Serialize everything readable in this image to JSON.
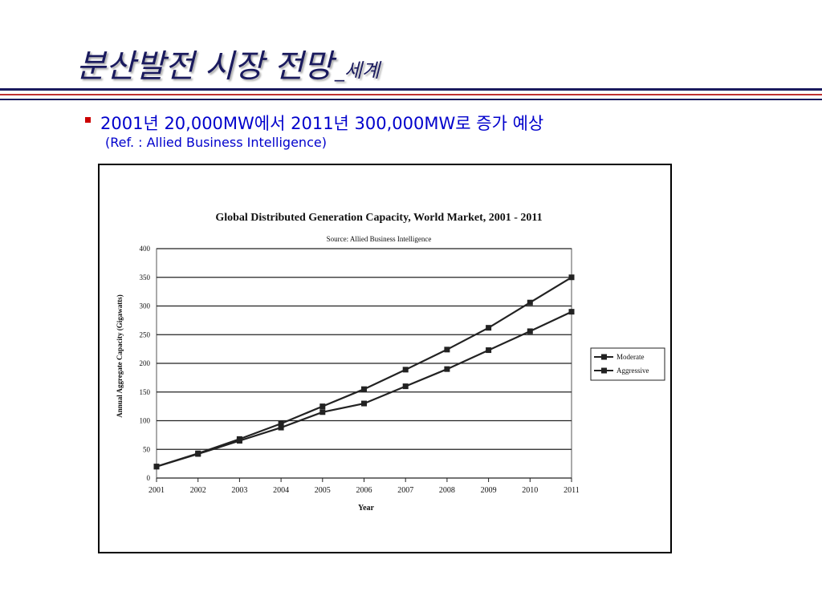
{
  "slide": {
    "title": "분산발전 시장 전망",
    "title_sub": "_세계",
    "bullet": "2001년 20,000MW에서 2011년 300,000MW로 증가 예상",
    "ref": "(Ref. : Allied Business Intelligence)"
  },
  "colors": {
    "title": "#1a1a5e",
    "rule_blue": "#1a1a5e",
    "rule_red": "#c03030",
    "bullet": "#cc0000",
    "body_text": "#0000cc"
  },
  "chart_data": {
    "type": "line",
    "title": "Global Distributed Generation Capacity, World Market, 2001 - 2011",
    "subtitle": "Source: Allied Business Intelligence",
    "xlabel": "Year",
    "ylabel": "Annual Aggregate Capacity (Gigawatts)",
    "categories": [
      "2001",
      "2002",
      "2003",
      "2004",
      "2005",
      "2006",
      "2007",
      "2008",
      "2009",
      "2010",
      "2011"
    ],
    "ylim": [
      0,
      400
    ],
    "yticks": [
      0,
      50,
      100,
      150,
      200,
      250,
      300,
      350,
      400
    ],
    "ytick_labels": [
      "0",
      "50",
      "100",
      "150",
      "200",
      "250",
      "300",
      "350",
      "400"
    ],
    "series": [
      {
        "name": "Moderate",
        "values": [
          20,
          42,
          65,
          88,
          115,
          130,
          160,
          190,
          223,
          256,
          290
        ]
      },
      {
        "name": "Aggressive",
        "values": [
          20,
          43,
          68,
          95,
          125,
          155,
          189,
          224,
          262,
          306,
          350
        ]
      }
    ],
    "grid": true,
    "legend_position": "right",
    "line_color": "#222222"
  }
}
